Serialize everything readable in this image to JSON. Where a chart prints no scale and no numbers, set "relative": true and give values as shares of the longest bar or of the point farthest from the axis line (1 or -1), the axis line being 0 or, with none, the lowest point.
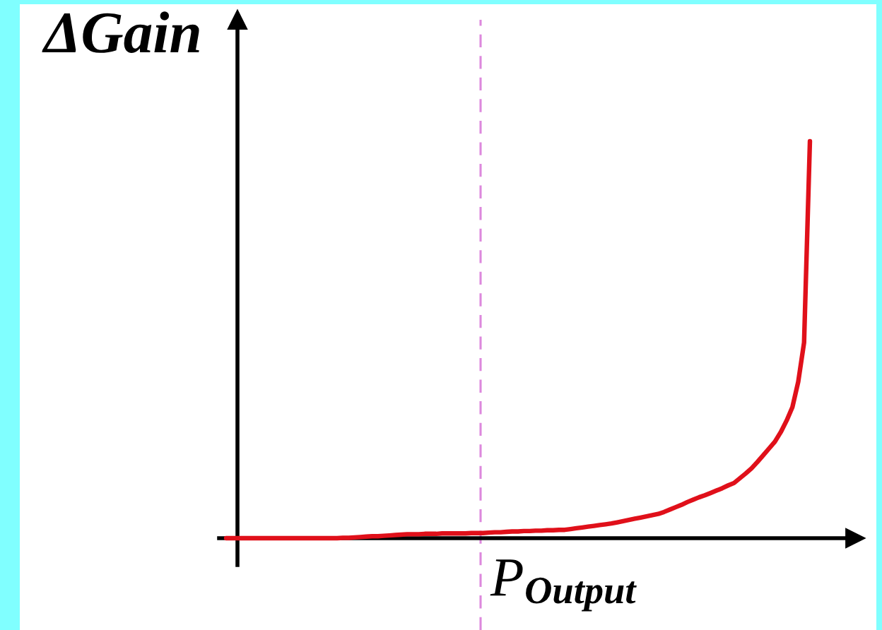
{
  "chart_data": {
    "type": "line",
    "relative": true,
    "xlabel": "P$_{Output}$",
    "ylabel": "ΔGain",
    "categories": [
      null,
      null,
      null,
      null,
      null,
      null,
      null,
      null,
      null,
      null,
      null,
      null,
      null,
      null,
      null,
      null,
      null,
      null,
      null,
      null,
      null,
      null,
      null,
      null,
      null,
      null,
      null,
      null,
      null,
      null,
      null,
      null,
      null,
      null,
      null,
      null,
      null,
      null,
      null,
      null,
      null,
      null,
      null,
      null,
      null,
      null,
      null,
      null,
      null,
      null,
      null,
      null,
      null,
      null,
      null,
      null,
      null,
      null,
      null,
      null,
      null,
      null,
      null,
      null,
      null,
      null,
      null,
      null,
      null,
      null,
      null,
      null,
      null,
      null,
      null,
      null,
      null,
      null,
      null,
      null,
      null,
      null,
      null,
      null,
      null,
      null,
      null,
      null,
      null,
      null,
      null,
      null,
      null,
      null,
      null,
      null,
      null,
      null,
      null,
      null,
      null
    ],
    "series": [
      {
        "color": "#e0101a",
        "values": [
          0,
          0,
          0,
          0,
          0,
          0,
          0,
          0,
          0,
          0,
          0,
          0,
          0,
          0,
          0,
          0,
          0,
          0,
          0,
          0,
          0.001,
          0.001,
          0.002,
          0.003,
          0.004,
          0.005,
          0.005,
          0.006,
          0.007,
          0.008,
          0.009,
          0.01,
          0.01,
          0.01,
          0.011,
          0.011,
          0.011,
          0.012,
          0.012,
          0.012,
          0.012,
          0.012,
          0.013,
          0.013,
          0.013,
          0.014,
          0.015,
          0.015,
          0.016,
          0.017,
          0.017,
          0.018,
          0.018,
          0.019,
          0.019,
          0.02,
          0.02,
          0.021,
          0.021,
          0.023,
          0.025,
          0.027,
          0.029,
          0.031,
          0.033,
          0.035,
          0.037,
          0.04,
          0.043,
          0.046,
          0.049,
          0.052,
          0.055,
          0.058,
          0.061,
          0.066,
          0.072,
          0.078,
          0.084,
          0.091,
          0.097,
          0.103,
          0.108,
          0.114,
          0.12,
          0.126,
          0.133,
          0.139,
          0.151,
          0.163,
          0.176,
          0.192,
          0.209,
          0.226,
          0.243,
          0.267,
          0.296,
          0.33,
          0.394,
          0.493,
          1
        ]
      }
    ]
  }
}
